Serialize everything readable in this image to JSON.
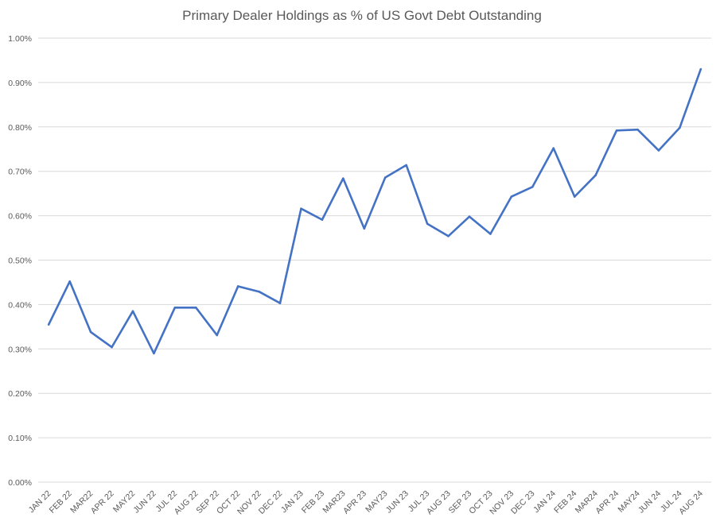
{
  "chart_data": {
    "type": "line",
    "title": "Primary Dealer Holdings as % of US Govt Debt Outstanding",
    "xlabel": "",
    "ylabel": "",
    "ylim": [
      0,
      1.0
    ],
    "y_ticks": [
      "0.00%",
      "0.10%",
      "0.20%",
      "0.30%",
      "0.40%",
      "0.50%",
      "0.60%",
      "0.70%",
      "0.80%",
      "0.90%",
      "1.00%"
    ],
    "y_tick_values": [
      0,
      0.1,
      0.2,
      0.3,
      0.4,
      0.5,
      0.6,
      0.7,
      0.8,
      0.9,
      1.0
    ],
    "grid": true,
    "legend": "none",
    "line_color": "#4472C4",
    "grid_color": "#d9d9d9",
    "categories": [
      "JAN 22",
      "FEB 22",
      "MAR22",
      "APR 22",
      "MAY22",
      "JUN 22",
      "JUL 22",
      "AUG 22",
      "SEP 22",
      "OCT 22",
      "NOV 22",
      "DEC 22",
      "JAN 23",
      "FEB 23",
      "MAR23",
      "APR 23",
      "MAY23",
      "JUN 23",
      "JUL 23",
      "AUG 23",
      "SEP 23",
      "OCT 23",
      "NOV 23",
      "DEC 23",
      "JAN 24",
      "FEB 24",
      "MAR24",
      "APR 24",
      "MAY24",
      "JUN 24",
      "JUL 24",
      "AUG 24"
    ],
    "series": [
      {
        "values": [
          0.355,
          0.452,
          0.338,
          0.304,
          0.385,
          0.29,
          0.393,
          0.393,
          0.331,
          0.441,
          0.429,
          0.403,
          0.616,
          0.591,
          0.684,
          0.571,
          0.686,
          0.714,
          0.582,
          0.554,
          0.598,
          0.559,
          0.643,
          0.665,
          0.752,
          0.643,
          0.691,
          0.792,
          0.794,
          0.747,
          0.798,
          0.93
        ]
      }
    ]
  }
}
